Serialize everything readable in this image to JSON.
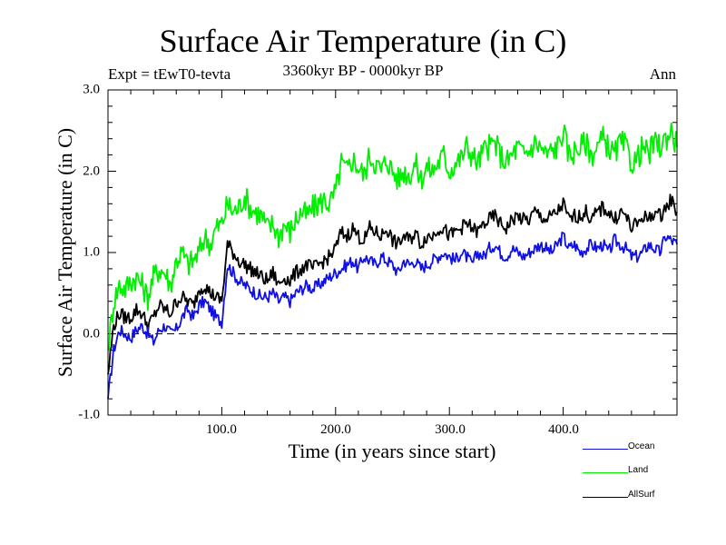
{
  "chart_data": {
    "type": "line",
    "title": "Surface Air Temperature (in C)",
    "subtitle_left": "Expt = tEwT0-tevta",
    "subtitle_center": "3360kyr BP - 0000kyr BP",
    "subtitle_right": "Ann",
    "xlabel": "Time (in years since start)",
    "ylabel": "Surface Air Temperature (in C)",
    "xlim": [
      0,
      500
    ],
    "ylim": [
      -1.0,
      3.0
    ],
    "xticks": [
      100,
      200,
      300,
      400
    ],
    "xtick_labels": [
      "100.0",
      "200.0",
      "300.0",
      "400.0"
    ],
    "x_minor_step": 20,
    "yticks": [
      -1.0,
      0.0,
      1.0,
      2.0,
      3.0
    ],
    "ytick_labels": [
      "-1.0",
      "0.0",
      "1.0",
      "2.0",
      "3.0"
    ],
    "y_minor_step": 0.2,
    "reference_line": {
      "y": 0.0,
      "style": "dashed"
    },
    "legend_position": "bottom-right",
    "x": [
      0,
      5,
      10,
      15,
      20,
      25,
      30,
      35,
      40,
      45,
      50,
      55,
      60,
      65,
      70,
      75,
      80,
      85,
      90,
      95,
      100,
      105,
      110,
      115,
      120,
      125,
      130,
      135,
      140,
      145,
      150,
      155,
      160,
      165,
      170,
      175,
      180,
      185,
      190,
      195,
      200,
      205,
      210,
      215,
      220,
      225,
      230,
      235,
      240,
      245,
      250,
      255,
      260,
      265,
      270,
      275,
      280,
      285,
      290,
      295,
      300,
      305,
      310,
      315,
      320,
      325,
      330,
      335,
      340,
      345,
      350,
      355,
      360,
      365,
      370,
      375,
      380,
      385,
      390,
      395,
      400,
      405,
      410,
      415,
      420,
      425,
      430,
      435,
      440,
      445,
      450,
      455,
      460,
      465,
      470,
      475,
      480,
      485,
      490,
      495,
      500
    ],
    "series": [
      {
        "name": "Ocean",
        "color": "#1010e0",
        "values": [
          -0.8,
          -0.2,
          0.05,
          0.0,
          -0.05,
          0.05,
          0.1,
          0.0,
          -0.1,
          0.05,
          0.1,
          0.0,
          0.05,
          0.2,
          0.3,
          0.2,
          0.35,
          0.4,
          0.3,
          0.2,
          0.15,
          0.85,
          0.75,
          0.65,
          0.6,
          0.55,
          0.5,
          0.45,
          0.45,
          0.5,
          0.4,
          0.45,
          0.4,
          0.5,
          0.55,
          0.6,
          0.55,
          0.6,
          0.65,
          0.7,
          0.75,
          0.8,
          0.85,
          0.9,
          0.8,
          0.95,
          0.9,
          0.85,
          0.95,
          0.9,
          0.85,
          0.75,
          0.9,
          0.85,
          0.9,
          0.8,
          0.85,
          0.9,
          0.95,
          1.0,
          0.95,
          0.9,
          1.0,
          0.95,
          0.85,
          1.0,
          0.95,
          1.05,
          1.1,
          1.0,
          0.95,
          1.05,
          1.0,
          0.95,
          1.0,
          1.05,
          1.1,
          1.05,
          1.0,
          1.1,
          1.2,
          1.05,
          1.1,
          1.0,
          1.05,
          1.1,
          1.05,
          1.1,
          1.0,
          1.15,
          1.1,
          1.05,
          0.95,
          0.95,
          1.0,
          1.1,
          1.05,
          1.0,
          1.2,
          1.15,
          1.1
        ]
      },
      {
        "name": "Land",
        "color": "#00ee00",
        "values": [
          -0.2,
          0.4,
          0.6,
          0.55,
          0.65,
          0.7,
          0.6,
          0.45,
          0.7,
          0.8,
          0.75,
          0.6,
          0.9,
          1.0,
          0.85,
          0.9,
          1.0,
          1.2,
          1.1,
          1.3,
          1.35,
          1.6,
          1.5,
          1.55,
          1.7,
          1.55,
          1.5,
          1.45,
          1.3,
          1.35,
          1.2,
          1.35,
          1.25,
          1.4,
          1.5,
          1.45,
          1.55,
          1.6,
          1.65,
          1.6,
          1.75,
          2.1,
          2.0,
          2.15,
          2.05,
          1.95,
          2.2,
          2.1,
          2.0,
          2.15,
          2.0,
          1.9,
          2.0,
          1.95,
          2.1,
          1.9,
          2.05,
          2.0,
          2.1,
          2.2,
          2.0,
          2.1,
          2.15,
          2.3,
          2.2,
          2.1,
          2.25,
          2.3,
          2.35,
          2.2,
          2.1,
          2.2,
          2.3,
          2.2,
          2.25,
          2.35,
          2.3,
          2.2,
          2.25,
          2.3,
          2.5,
          2.2,
          2.25,
          2.3,
          2.35,
          2.2,
          2.3,
          2.4,
          2.3,
          2.2,
          2.35,
          2.3,
          2.1,
          2.15,
          2.3,
          2.2,
          2.35,
          2.3,
          2.4,
          2.5,
          2.3
        ]
      },
      {
        "name": "AllSurf",
        "color": "#000000",
        "values": [
          -0.5,
          0.1,
          0.25,
          0.2,
          0.2,
          0.3,
          0.25,
          0.1,
          0.2,
          0.35,
          0.3,
          0.25,
          0.4,
          0.45,
          0.4,
          0.35,
          0.55,
          0.6,
          0.5,
          0.45,
          0.4,
          1.1,
          1.0,
          0.9,
          0.85,
          0.8,
          0.75,
          0.7,
          0.65,
          0.75,
          0.6,
          0.7,
          0.65,
          0.75,
          0.8,
          0.85,
          0.8,
          0.85,
          0.9,
          0.95,
          1.05,
          1.25,
          1.2,
          1.3,
          1.2,
          1.15,
          1.3,
          1.25,
          1.2,
          1.3,
          1.15,
          1.1,
          1.2,
          1.15,
          1.25,
          1.1,
          1.2,
          1.2,
          1.3,
          1.3,
          1.2,
          1.25,
          1.3,
          1.35,
          1.3,
          1.25,
          1.35,
          1.4,
          1.45,
          1.35,
          1.3,
          1.4,
          1.45,
          1.4,
          1.4,
          1.5,
          1.45,
          1.4,
          1.45,
          1.5,
          1.6,
          1.4,
          1.45,
          1.45,
          1.5,
          1.4,
          1.5,
          1.55,
          1.5,
          1.4,
          1.5,
          1.45,
          1.3,
          1.35,
          1.45,
          1.4,
          1.5,
          1.45,
          1.55,
          1.65,
          1.5
        ]
      }
    ]
  }
}
